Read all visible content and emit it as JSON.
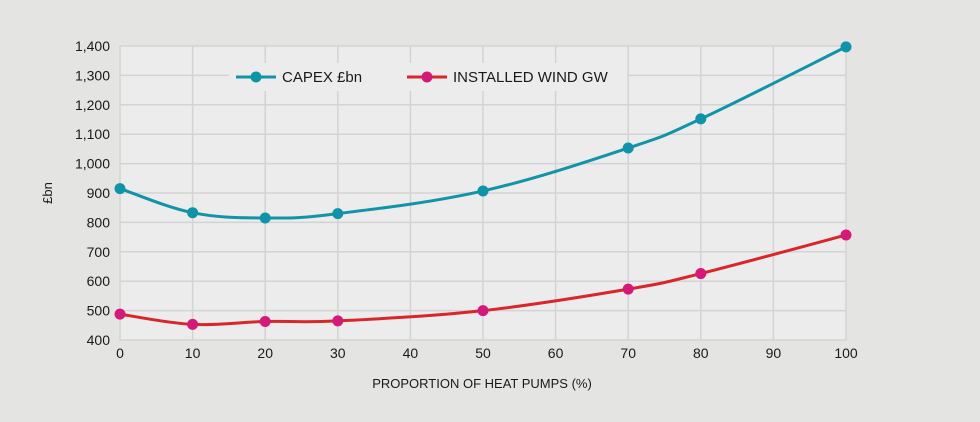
{
  "chart_data": {
    "type": "line",
    "title": "",
    "xlabel": "PROPORTION OF HEAT PUMPS (%)",
    "ylabel": "£bn",
    "xlim": [
      0,
      100
    ],
    "ylim": [
      400,
      1400
    ],
    "x_ticks": [
      0,
      10,
      20,
      30,
      40,
      50,
      60,
      70,
      80,
      90,
      100
    ],
    "y_ticks": [
      400,
      500,
      600,
      700,
      800,
      900,
      1000,
      1100,
      1200,
      1300,
      1400
    ],
    "y_tick_labels": [
      "400",
      "500",
      "600",
      "700",
      "800",
      "900",
      "1,000",
      "1,100",
      "1,200",
      "1,300",
      "1,400"
    ],
    "grid": true,
    "legend_position": "top-left",
    "series": [
      {
        "name": "CAPEX £bn",
        "line_color": "#1293a8",
        "marker_color": "#0f93a8",
        "x": [
          0,
          10,
          20,
          30,
          50,
          70,
          80,
          100
        ],
        "values": [
          915,
          833,
          815,
          830,
          907,
          1053,
          1152,
          1397
        ]
      },
      {
        "name": "INSTALLED WIND GW",
        "line_color": "#d8262b",
        "marker_color": "#d4197a",
        "x": [
          0,
          10,
          20,
          30,
          50,
          70,
          80,
          100
        ],
        "values": [
          488,
          453,
          463,
          465,
          500,
          573,
          626,
          757
        ]
      }
    ]
  }
}
